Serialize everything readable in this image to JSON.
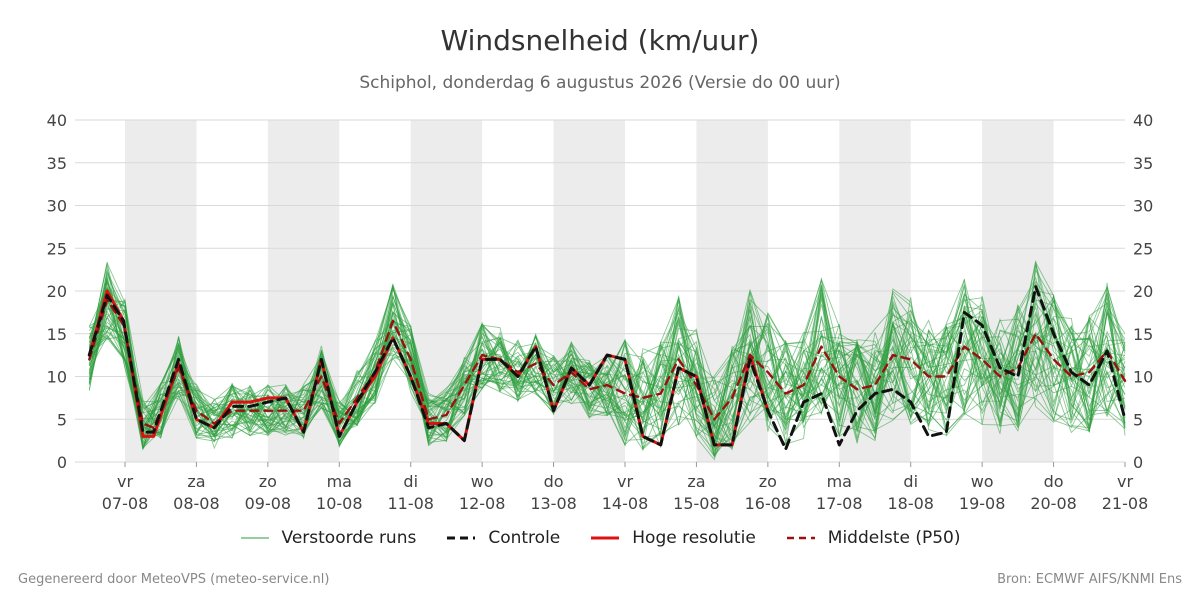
{
  "chart_data": {
    "type": "line",
    "title": "Windsnelheid (km/uur)",
    "subtitle": "Schiphol, donderdag  6 augustus 2026 (Versie do 00 uur)",
    "ylim": [
      0,
      40
    ],
    "yticks": [
      0,
      5,
      10,
      15,
      20,
      25,
      30,
      35,
      40
    ],
    "x_range_days": [
      6.3,
      21.0
    ],
    "x_ticks": [
      {
        "day": "vr",
        "date": "07-08",
        "pos": 7
      },
      {
        "day": "za",
        "date": "08-08",
        "pos": 8
      },
      {
        "day": "zo",
        "date": "09-08",
        "pos": 9
      },
      {
        "day": "ma",
        "date": "10-08",
        "pos": 10
      },
      {
        "day": "di",
        "date": "11-08",
        "pos": 11
      },
      {
        "day": "wo",
        "date": "12-08",
        "pos": 12
      },
      {
        "day": "do",
        "date": "13-08",
        "pos": 13
      },
      {
        "day": "vr",
        "date": "14-08",
        "pos": 14
      },
      {
        "day": "za",
        "date": "15-08",
        "pos": 15
      },
      {
        "day": "zo",
        "date": "16-08",
        "pos": 16
      },
      {
        "day": "ma",
        "date": "17-08",
        "pos": 17
      },
      {
        "day": "di",
        "date": "18-08",
        "pos": 18
      },
      {
        "day": "wo",
        "date": "19-08",
        "pos": 19
      },
      {
        "day": "do",
        "date": "20-08",
        "pos": 20
      },
      {
        "day": "vr",
        "date": "21-08",
        "pos": 21
      }
    ],
    "weekend_bands": [
      [
        7,
        8
      ],
      [
        9,
        10
      ],
      [
        11,
        12
      ],
      [
        13,
        14
      ],
      [
        15,
        16
      ],
      [
        17,
        18
      ],
      [
        19,
        20
      ]
    ],
    "series": [
      {
        "name": "Controle",
        "color": "#111111",
        "x": [
          6.5,
          6.75,
          6.98,
          7.25,
          7.4,
          7.75,
          8.0,
          8.25,
          8.5,
          8.75,
          9.0,
          9.25,
          9.5,
          9.75,
          10.0,
          10.25,
          10.5,
          10.75,
          11.0,
          11.25,
          11.5,
          11.75,
          12.0,
          12.25,
          12.5,
          12.75,
          13.0,
          13.25,
          13.5,
          13.75,
          14.0,
          14.25,
          14.5,
          14.75,
          15.0,
          15.25,
          15.5,
          15.75,
          16.0,
          16.25,
          16.5,
          16.75,
          17.0,
          17.25,
          17.5,
          17.75,
          18.0,
          18.25,
          18.5,
          18.75,
          19.0,
          19.25,
          19.5,
          19.75,
          20.0,
          20.25,
          20.5,
          20.75,
          21.0
        ],
        "y": [
          12.5,
          19.5,
          16.5,
          3.5,
          3.5,
          12.0,
          5.0,
          4.0,
          6.5,
          6.5,
          7.0,
          7.5,
          3.5,
          12.0,
          3.0,
          7.0,
          10.5,
          14.5,
          10.0,
          4.0,
          4.5,
          2.5,
          12.0,
          12.0,
          10.0,
          13.5,
          6.0,
          11.0,
          9.0,
          12.5,
          12.0,
          3.0,
          2.0,
          11.0,
          10.0,
          2.0,
          2.0,
          12.0,
          6.0,
          1.5,
          7.0,
          8.0,
          2.0,
          6.0,
          8.0,
          8.5,
          7.0,
          3.0,
          3.5,
          17.5,
          16.0,
          11.0,
          10.0,
          20.5,
          15.0,
          10.5,
          9.0,
          13.0,
          5.0
        ]
      },
      {
        "name": "Hoge resolutie",
        "color": "#dd1111",
        "x": [
          6.5,
          6.75,
          6.98,
          7.25,
          7.4,
          7.75,
          8.0,
          8.25,
          8.5,
          8.75,
          9.0,
          9.25,
          9.5,
          9.75,
          10.0,
          10.25,
          10.5,
          10.75,
          11.0,
          11.25,
          11.5,
          11.75,
          12.0,
          12.25,
          12.5,
          12.75,
          13.0,
          13.25,
          13.5,
          13.75,
          14.0,
          14.25,
          14.5,
          14.75,
          15.0,
          15.25,
          15.5,
          15.75,
          16.0
        ],
        "y": [
          12.5,
          20.0,
          16.5,
          3.0,
          3.0,
          11.5,
          5.0,
          4.0,
          7.0,
          7.0,
          7.5,
          7.5,
          3.5,
          12.0,
          3.0,
          7.0,
          10.0,
          14.5,
          10.0,
          4.5,
          4.5,
          2.5,
          12.0,
          12.0,
          10.0,
          13.5,
          6.0,
          11.0,
          9.0,
          12.5,
          12.0,
          3.0,
          2.0,
          11.0,
          10.0,
          2.0,
          2.0,
          12.5,
          6.0
        ]
      },
      {
        "name": "Middelste (P50)",
        "color": "#991111",
        "x": [
          6.5,
          6.75,
          6.98,
          7.25,
          7.4,
          7.75,
          8.0,
          8.25,
          8.5,
          8.75,
          9.0,
          9.25,
          9.5,
          9.75,
          10.0,
          10.25,
          10.5,
          10.75,
          11.0,
          11.25,
          11.5,
          11.75,
          12.0,
          12.25,
          12.5,
          12.75,
          13.0,
          13.25,
          13.5,
          13.75,
          14.0,
          14.25,
          14.5,
          14.75,
          15.0,
          15.25,
          15.5,
          15.75,
          16.0,
          16.25,
          16.5,
          16.75,
          17.0,
          17.25,
          17.5,
          17.75,
          18.0,
          18.25,
          18.5,
          18.75,
          19.0,
          19.25,
          19.5,
          19.75,
          20.0,
          20.25,
          20.5,
          20.75,
          21.0
        ],
        "y": [
          12.0,
          19.0,
          16.0,
          4.5,
          4.0,
          11.0,
          6.0,
          4.5,
          6.0,
          6.0,
          6.0,
          6.0,
          6.0,
          10.0,
          4.5,
          7.5,
          10.5,
          16.5,
          12.0,
          5.0,
          5.5,
          9.0,
          12.5,
          12.0,
          10.5,
          11.5,
          9.0,
          10.5,
          8.5,
          9.0,
          8.0,
          7.5,
          8.0,
          12.0,
          9.0,
          5.0,
          7.5,
          12.5,
          10.5,
          8.0,
          9.0,
          13.5,
          10.0,
          8.5,
          9.0,
          12.5,
          12.0,
          10.0,
          10.0,
          13.5,
          12.0,
          10.0,
          11.0,
          15.0,
          12.0,
          10.0,
          10.5,
          13.0,
          9.5
        ]
      }
    ],
    "ensemble": {
      "name": "Verstoorde runs",
      "color": "#2e9e3e",
      "members": 50,
      "x_step_days": 0.25,
      "spread_note": "members scattered around the median; spread widening after 14-08"
    }
  },
  "legend": {
    "items": [
      {
        "label": "Verstoorde runs"
      },
      {
        "label": "Controle"
      },
      {
        "label": "Hoge resolutie"
      },
      {
        "label": "Middelste (P50)"
      }
    ]
  },
  "footer": {
    "left": "Gegenereerd door MeteoVPS (meteo-service.nl)",
    "right": "Bron: ECMWF AIFS/KNMI Ens"
  }
}
